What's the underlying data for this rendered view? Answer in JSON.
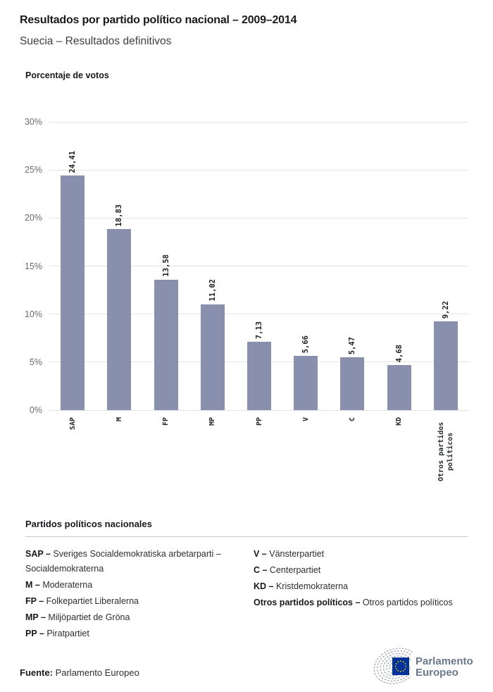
{
  "header": {
    "title": "Resultados por partido político nacional – 2009–2014",
    "subtitle": "Suecia – Resultados definitivos"
  },
  "chart_data": {
    "type": "bar",
    "title": "Porcentaje de votos",
    "categories": [
      "SAP",
      "M",
      "FP",
      "MP",
      "PP",
      "V",
      "C",
      "KD",
      "Otros partidos políticos"
    ],
    "values": [
      24.41,
      18.83,
      13.58,
      11.02,
      7.13,
      5.66,
      5.47,
      4.68,
      9.22
    ],
    "value_labels": [
      "24,41",
      "18,83",
      "13,58",
      "11,02",
      "7,13",
      "5,66",
      "5,47",
      "4,68",
      "9,22"
    ],
    "ytick_labels": [
      "0%",
      "5%",
      "10%",
      "15%",
      "20%",
      "25%",
      "30%"
    ],
    "ylim": [
      0,
      30
    ],
    "grid": true,
    "legend_position": "none",
    "bar_color": "#8890AE",
    "gridline_color": "#e4e4e6",
    "value_label_rotation": -90,
    "xtick_rotation": -90
  },
  "party_legend": {
    "heading": "Partidos políticos nacionales",
    "columns": [
      [
        {
          "abbr": "SAP –",
          "name": "Sveriges Socialdemokratiska arbetarparti – Socialdemokraterna"
        },
        {
          "abbr": "M –",
          "name": "Moderaterna"
        },
        {
          "abbr": "FP –",
          "name": "Folkepartiet Liberalerna"
        },
        {
          "abbr": "MP –",
          "name": "Miljöpartiet de Gröna"
        },
        {
          "abbr": "PP –",
          "name": "Piratpartiet"
        }
      ],
      [
        {
          "abbr": "V –",
          "name": "Vänsterpartiet"
        },
        {
          "abbr": "C –",
          "name": "Centerpartiet"
        },
        {
          "abbr": "KD –",
          "name": "Kristdemokraterna"
        },
        {
          "abbr": "Otros partidos políticos –",
          "name": "Otros partidos políticos"
        }
      ]
    ]
  },
  "footer": {
    "source_label": "Fuente:",
    "source_value": "Parlamento Europeo",
    "logo": {
      "line1": "Parlamento",
      "line2": "Europeo",
      "flag_color": "#003399",
      "star_color": "#FFCC00",
      "text_color": "#69788A",
      "hemicycle_color": "#8f959b"
    }
  }
}
